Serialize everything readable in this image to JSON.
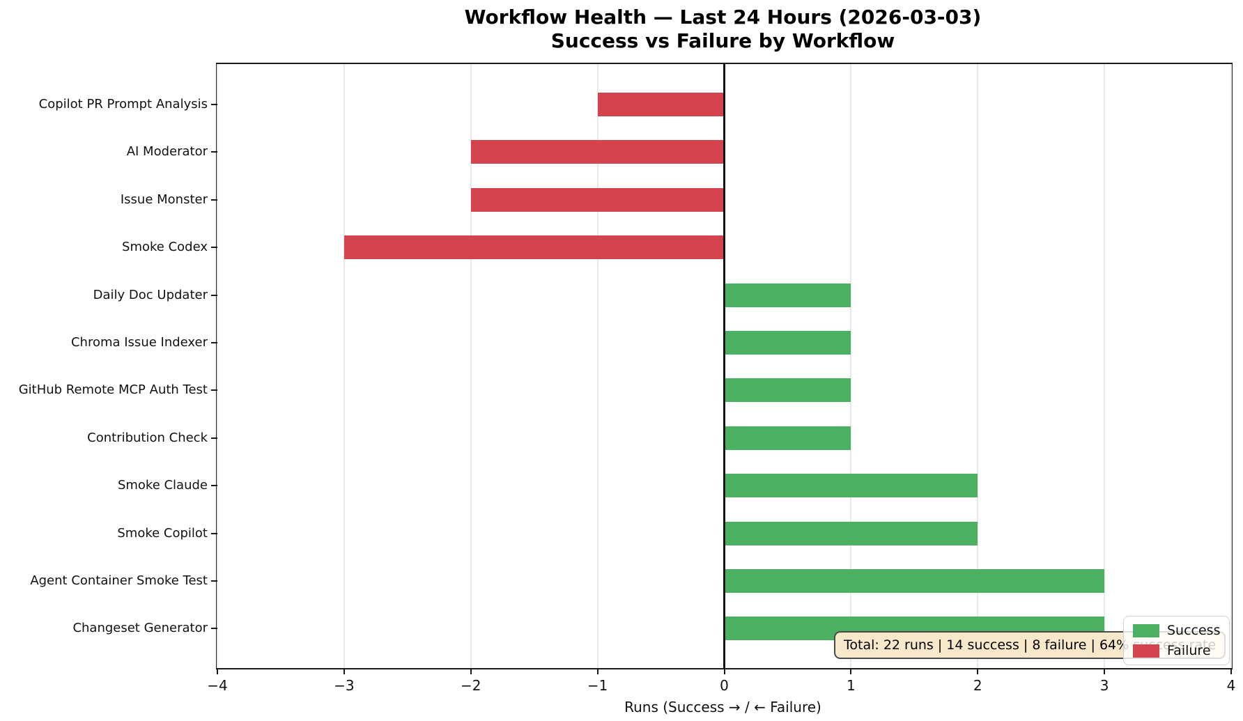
{
  "figure": {
    "title_line1": "Workflow Health — Last 24 Hours (2026-03-03)",
    "title_line2": "Success vs Failure by Workflow"
  },
  "chart_data": {
    "type": "bar",
    "orientation": "horizontal-diverging",
    "title": "Workflow Health — Last 24 Hours (2026-03-03)\nSuccess vs Failure by Workflow",
    "xlabel": "Runs (Success → / ← Failure)",
    "xlim": [
      -4,
      4
    ],
    "xticks": [
      -4,
      -3,
      -2,
      -1,
      0,
      1,
      2,
      3,
      4
    ],
    "xtick_labels": [
      "−4",
      "−3",
      "−2",
      "−1",
      "0",
      "1",
      "2",
      "3",
      "4"
    ],
    "grid": true,
    "zero_line": true,
    "legend_position": "lower right",
    "categories": [
      "Copilot PR Prompt Analysis",
      "AI Moderator",
      "Issue Monster",
      "Smoke Codex",
      "Daily Doc Updater",
      "Chroma Issue Indexer",
      "GitHub Remote MCP Auth Test",
      "Contribution Check",
      "Smoke Claude",
      "Smoke Copilot",
      "Agent Container Smoke Test",
      "Changeset Generator"
    ],
    "series": [
      {
        "name": "Success",
        "color": "#4bb061",
        "values": [
          0,
          0,
          0,
          0,
          1,
          1,
          1,
          1,
          2,
          2,
          3,
          3
        ]
      },
      {
        "name": "Failure",
        "color": "#d4444e",
        "plotted_direction": "negative",
        "values": [
          1,
          2,
          2,
          3,
          0,
          0,
          0,
          0,
          0,
          0,
          0,
          0
        ]
      }
    ],
    "annotation": "Total: 22 runs | 14 success | 8 failure | 64% success rate"
  }
}
